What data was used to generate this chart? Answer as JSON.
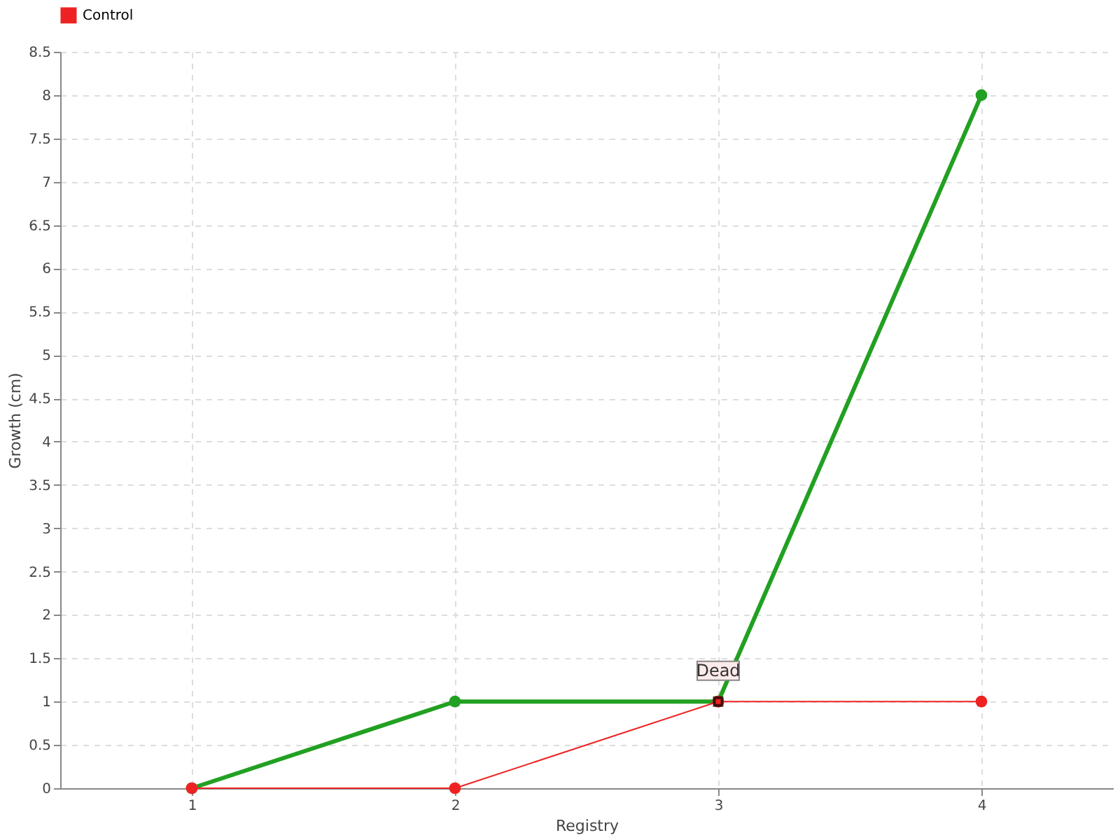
{
  "chart_data": {
    "type": "line",
    "xlabel": "Registry",
    "ylabel": "Growth (cm)",
    "x": [
      1,
      2,
      3,
      4
    ],
    "series": [
      {
        "color": "#22a022",
        "values": [
          0,
          1,
          1,
          8
        ]
      },
      {
        "name": "Control",
        "color": "#ee2222",
        "values": [
          0,
          0,
          1,
          1
        ]
      }
    ],
    "xlim": [
      0.5,
      4.5
    ],
    "xticks": [
      1,
      2,
      3,
      4
    ],
    "ylim": [
      0,
      8.5
    ],
    "yticks": [
      0,
      0.5,
      1,
      1.5,
      2,
      2.5,
      3,
      3.5,
      4,
      4.5,
      5,
      5.5,
      6,
      6.5,
      7,
      7.5,
      8,
      8.5
    ],
    "annotations": [
      {
        "text": "Dead",
        "x": 3,
        "y": 1
      }
    ],
    "grid": true,
    "legend": "top left",
    "marker": "circle",
    "line_style": "solid"
  }
}
